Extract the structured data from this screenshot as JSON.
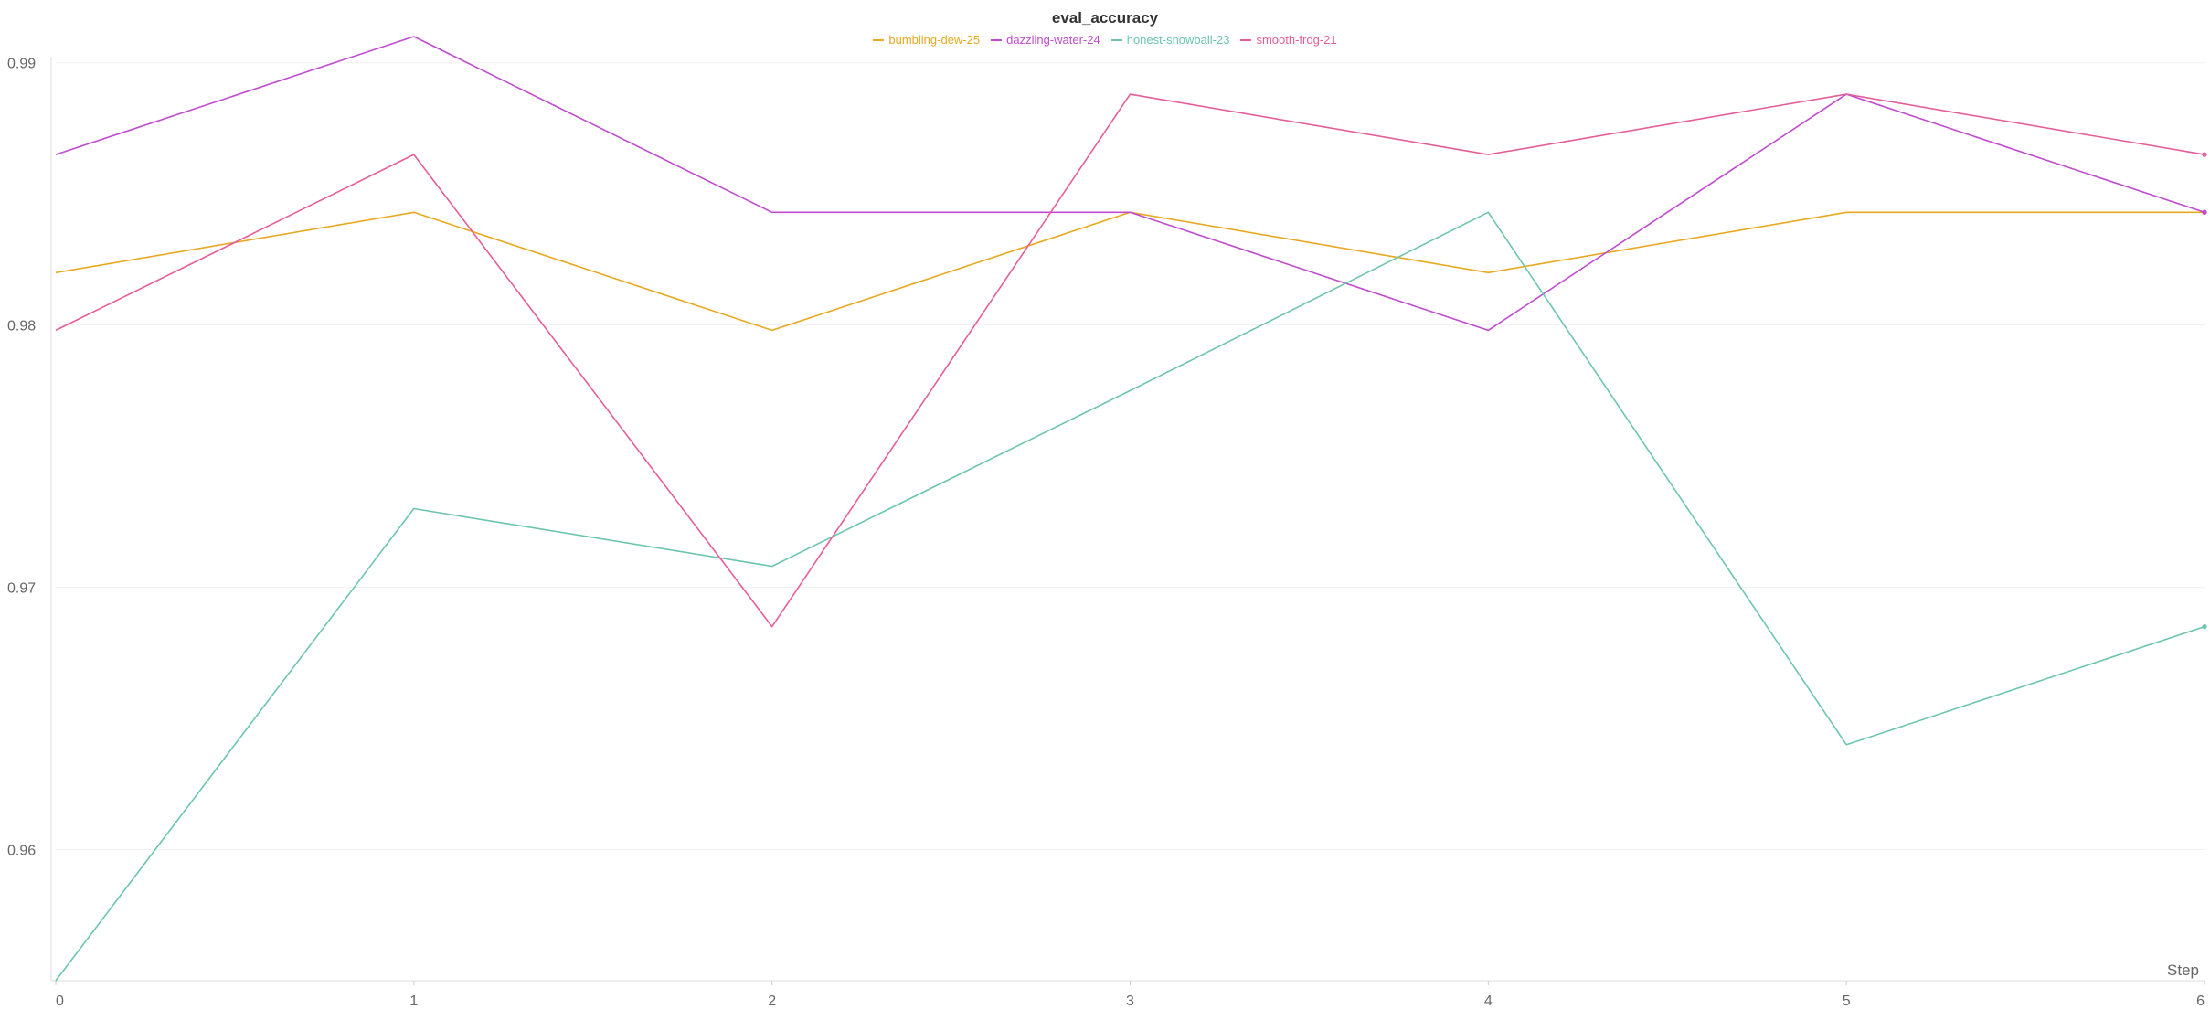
{
  "chart_data": {
    "type": "line",
    "title": "eval_accuracy",
    "xlabel": "Step",
    "ylabel": "",
    "x": [
      0,
      1,
      2,
      3,
      4,
      5,
      6
    ],
    "xlim": [
      0,
      6
    ],
    "ylim": [
      0.955,
      0.991
    ],
    "xticks": [
      "0",
      "1",
      "2",
      "3",
      "4",
      "5",
      "6"
    ],
    "yticks": [
      {
        "value": 0.96,
        "label": "0.96"
      },
      {
        "value": 0.97,
        "label": "0.97"
      },
      {
        "value": 0.98,
        "label": "0.98"
      },
      {
        "value": 0.99,
        "label": "0.99"
      }
    ],
    "grid": true,
    "legend_position": "top-center",
    "series": [
      {
        "name": "bumbling-dew-25",
        "color": "#e8a820",
        "values": [
          0.982,
          0.9843,
          0.9798,
          0.9843,
          0.982,
          0.9843,
          0.9843
        ]
      },
      {
        "name": "dazzling-water-24",
        "color": "#c04ad0",
        "values": [
          0.9865,
          0.991,
          0.9843,
          0.9843,
          0.9798,
          0.9888,
          0.9843
        ]
      },
      {
        "name": "honest-snowball-23",
        "color": "#6cc5ad",
        "values": [
          0.955,
          0.973,
          0.9708,
          0.9775,
          0.9843,
          0.964,
          0.9685
        ]
      },
      {
        "name": "smooth-frog-21",
        "color": "#e55d9a",
        "values": [
          0.9798,
          0.9865,
          0.9685,
          0.9888,
          0.9865,
          0.9888,
          0.9865
        ]
      }
    ]
  }
}
